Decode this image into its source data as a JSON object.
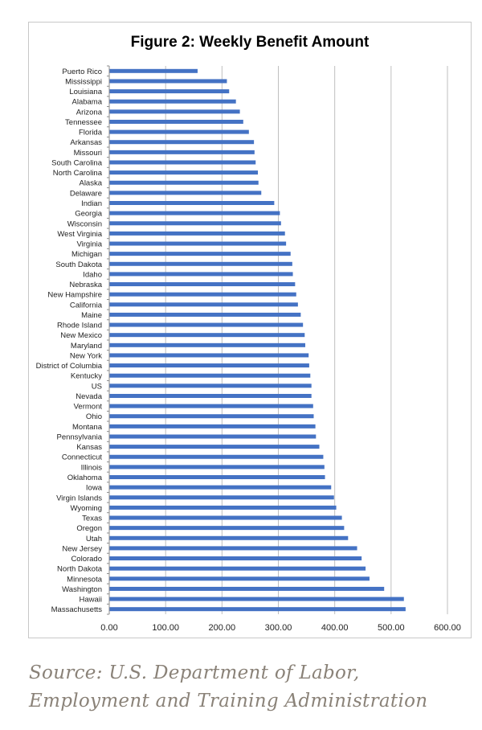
{
  "chart_data": {
    "type": "bar",
    "orientation": "horizontal",
    "title": "Figure 2: Weekly Benefit Amount",
    "xlabel": "",
    "ylabel": "",
    "xlim": [
      0,
      600
    ],
    "xticks": [
      "0.00",
      "100.00",
      "200.00",
      "300.00",
      "400.00",
      "500.00",
      "600.00"
    ],
    "grid": "vertical",
    "bar_color": "#4472c4",
    "categories": [
      "Puerto Rico",
      "Mississippi",
      "Louisiana",
      "Alabama",
      "Arizona",
      "Tennessee",
      "Florida",
      "Arkansas",
      "Missouri",
      "South Carolina",
      "North Carolina",
      "Alaska",
      "Delaware",
      "Indian",
      "Georgia",
      "Wisconsin",
      "West Virginia",
      "Virginia",
      "Michigan",
      "South Dakota",
      "Idaho",
      "Nebraska",
      "New Hampshire",
      "California",
      "Maine",
      "Rhode Island",
      "New Mexico",
      "Maryland",
      "New York",
      "District of Columbia",
      "Kentucky",
      "US",
      "Nevada",
      "Vermont",
      "Ohio",
      "Montana",
      "Pennsylvania",
      "Kansas",
      "Connecticut",
      "Illinois",
      "Oklahoma",
      "Iowa",
      "Virgin Islands",
      "Wyoming",
      "Texas",
      "Oregon",
      "Utah",
      "New Jersey",
      "Colorado",
      "North Dakota",
      "Minnesota",
      "Washington",
      "Hawaii",
      "Massachusetts"
    ],
    "values": [
      156,
      208,
      212,
      224,
      231,
      237,
      247,
      256,
      257,
      259,
      263,
      264,
      269,
      292,
      302,
      304,
      311,
      313,
      321,
      324,
      325,
      329,
      331,
      334,
      339,
      343,
      346,
      347,
      353,
      354,
      356,
      358,
      358,
      361,
      362,
      365,
      366,
      372,
      379,
      381,
      382,
      393,
      398,
      402,
      412,
      416,
      423,
      439,
      447,
      454,
      461,
      487,
      522,
      525
    ]
  },
  "source": {
    "line1": "Source: U.S. Department of Labor,",
    "line2": "Employment and Training Administration"
  }
}
